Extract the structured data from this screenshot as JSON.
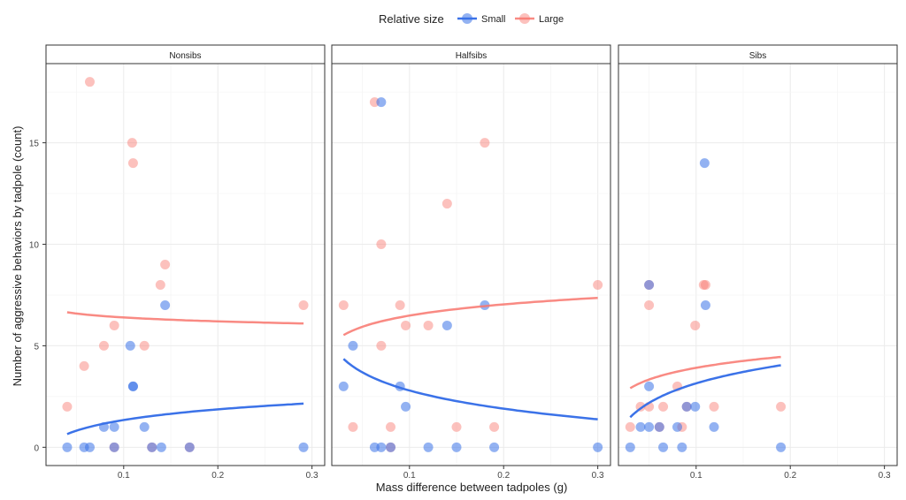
{
  "chart_data": {
    "type": "scatter",
    "xlabel": "Mass difference between tadpoles (g)",
    "ylabel": "Number of aggressive behaviors by tadpole (count)",
    "xlim": [
      0.0175,
      0.3135
    ],
    "ylim": [
      -0.9,
      18.9
    ],
    "x_ticks": [
      0.1,
      0.2,
      0.3
    ],
    "x_tick_labels": [
      "0.1",
      "0.2",
      "0.3"
    ],
    "y_ticks": [
      0,
      5,
      10,
      15
    ],
    "y_tick_labels": [
      "0",
      "5",
      "10",
      "15"
    ],
    "grid": true,
    "legend": {
      "title": "Relative size",
      "placement": "top",
      "entries": [
        {
          "name": "Small",
          "color": "#3b72e8"
        },
        {
          "name": "Large",
          "color": "#f8766d"
        }
      ]
    },
    "fit_model": "y = a + b*ln(x)",
    "panels": [
      {
        "title": "Nonsibs",
        "series": [
          {
            "name": "Large",
            "fit": {
              "a": 5.758,
              "b": -0.277,
              "xrange": [
                0.04,
                0.291
              ]
            },
            "points": [
              [
                0.04,
                2
              ],
              [
                0.058,
                4
              ],
              [
                0.079,
                5
              ],
              [
                0.09,
                6
              ],
              [
                0.122,
                5
              ],
              [
                0.139,
                8
              ],
              [
                0.144,
                9
              ],
              [
                0.109,
                15
              ],
              [
                0.11,
                14
              ],
              [
                0.064,
                18
              ],
              [
                0.291,
                7
              ],
              [
                0.09,
                0
              ],
              [
                0.13,
                0
              ],
              [
                0.17,
                0
              ]
            ]
          },
          {
            "name": "Small",
            "fit": {
              "a": 3.084,
              "b": 0.756,
              "xrange": [
                0.04,
                0.291
              ]
            },
            "points": [
              [
                0.04,
                0
              ],
              [
                0.058,
                0
              ],
              [
                0.064,
                0
              ],
              [
                0.079,
                1
              ],
              [
                0.09,
                1
              ],
              [
                0.09,
                0
              ],
              [
                0.107,
                5
              ],
              [
                0.11,
                3
              ],
              [
                0.11,
                3
              ],
              [
                0.122,
                1
              ],
              [
                0.13,
                0
              ],
              [
                0.14,
                0
              ],
              [
                0.144,
                7
              ],
              [
                0.17,
                0
              ],
              [
                0.291,
                0
              ]
            ]
          }
        ]
      },
      {
        "title": "Halfsibs",
        "series": [
          {
            "name": "Large",
            "fit": {
              "a": 8.317,
              "b": 0.795,
              "xrange": [
                0.03,
                0.3
              ]
            },
            "points": [
              [
                0.03,
                7
              ],
              [
                0.04,
                1
              ],
              [
                0.07,
                5
              ],
              [
                0.08,
                1
              ],
              [
                0.09,
                7
              ],
              [
                0.096,
                6
              ],
              [
                0.12,
                6
              ],
              [
                0.15,
                1
              ],
              [
                0.19,
                1
              ],
              [
                0.3,
                8
              ],
              [
                0.08,
                0
              ],
              [
                0.14,
                12
              ],
              [
                0.18,
                15
              ],
              [
                0.07,
                10
              ],
              [
                0.063,
                17
              ]
            ]
          },
          {
            "name": "Small",
            "fit": {
              "a": -0.173,
              "b": -1.29,
              "xrange": [
                0.03,
                0.3
              ]
            },
            "points": [
              [
                0.03,
                3
              ],
              [
                0.04,
                5
              ],
              [
                0.063,
                0
              ],
              [
                0.07,
                0
              ],
              [
                0.08,
                0
              ],
              [
                0.09,
                3
              ],
              [
                0.096,
                2
              ],
              [
                0.12,
                0
              ],
              [
                0.14,
                6
              ],
              [
                0.15,
                0
              ],
              [
                0.18,
                7
              ],
              [
                0.19,
                0
              ],
              [
                0.3,
                0
              ],
              [
                0.07,
                17
              ]
            ]
          }
        ]
      },
      {
        "title": "Sibs",
        "series": [
          {
            "name": "Large",
            "fit": {
              "a": 5.835,
              "b": 0.834,
              "xrange": [
                0.03,
                0.19
              ]
            },
            "points": [
              [
                0.03,
                1
              ],
              [
                0.041,
                2
              ],
              [
                0.05,
                2
              ],
              [
                0.05,
                7
              ],
              [
                0.05,
                8
              ],
              [
                0.061,
                1
              ],
              [
                0.065,
                2
              ],
              [
                0.08,
                3
              ],
              [
                0.085,
                1
              ],
              [
                0.09,
                2
              ],
              [
                0.099,
                6
              ],
              [
                0.108,
                8
              ],
              [
                0.11,
                8
              ],
              [
                0.119,
                2
              ],
              [
                0.19,
                2
              ]
            ]
          },
          {
            "name": "Small",
            "fit": {
              "a": 6.343,
              "b": 1.387,
              "xrange": [
                0.03,
                0.19
              ]
            },
            "points": [
              [
                0.03,
                0
              ],
              [
                0.041,
                1
              ],
              [
                0.05,
                1
              ],
              [
                0.05,
                3
              ],
              [
                0.05,
                8
              ],
              [
                0.061,
                1
              ],
              [
                0.065,
                0
              ],
              [
                0.08,
                1
              ],
              [
                0.085,
                0
              ],
              [
                0.09,
                2
              ],
              [
                0.099,
                2
              ],
              [
                0.11,
                7
              ],
              [
                0.119,
                1
              ],
              [
                0.19,
                0
              ],
              [
                0.109,
                14
              ]
            ]
          }
        ]
      }
    ]
  }
}
